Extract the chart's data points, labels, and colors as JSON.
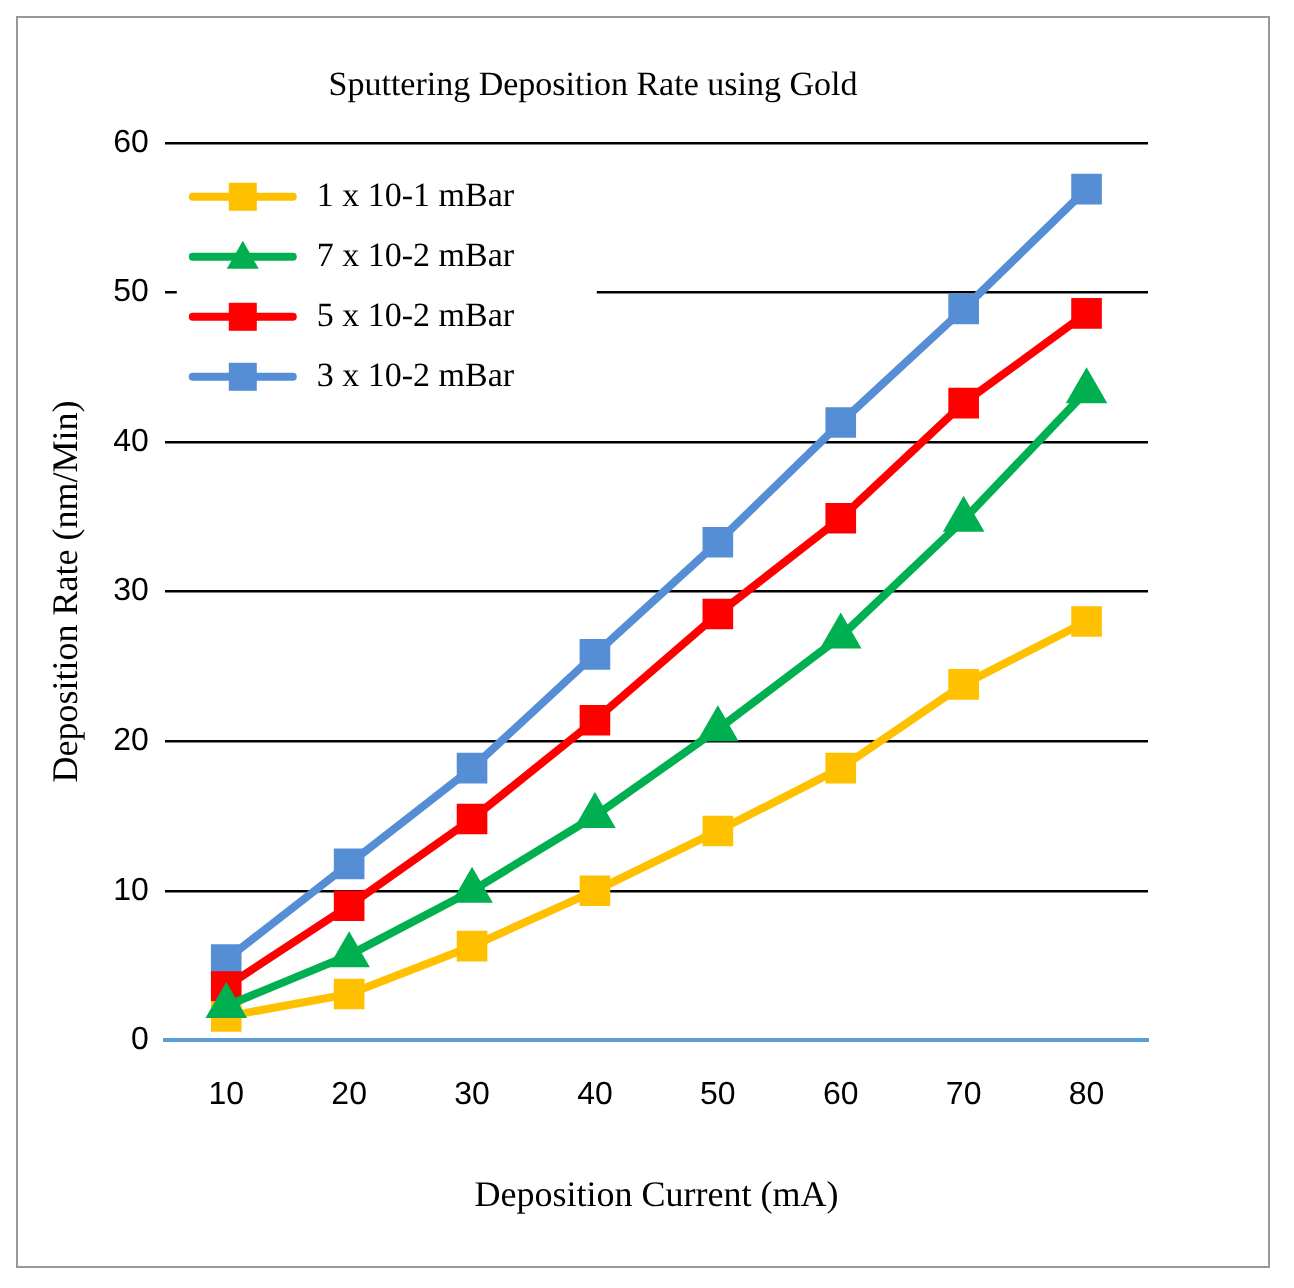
{
  "chart_data": {
    "type": "line",
    "title": "Sputtering Deposition Rate using Gold",
    "xlabel": "Deposition Current (mA)",
    "ylabel": "Deposition Rate (nm/Min)",
    "categories": [
      "10",
      "20",
      "30",
      "40",
      "50",
      "60",
      "70",
      "80"
    ],
    "series": [
      {
        "name": "1 x 10-1 mBar",
        "color": "#ffc000",
        "marker": "square",
        "values": [
          1.6,
          3.1,
          6.3,
          10,
          14,
          18.2,
          23.8,
          28
        ]
      },
      {
        "name": "7 x 10-2 mBar",
        "color": "#00b050",
        "marker": "triangle",
        "values": [
          2.3,
          5.7,
          10,
          15,
          20.8,
          27,
          34.8,
          43.4
        ]
      },
      {
        "name": "5 x 10-2 mBar",
        "color": "#ff0000",
        "marker": "square",
        "values": [
          3.6,
          9,
          14.8,
          21.4,
          28.5,
          34.9,
          42.6,
          48.6
        ]
      },
      {
        "name": "3 x 10-2 mBar",
        "color": "#558ed5",
        "marker": "square",
        "values": [
          5.4,
          11.8,
          18.2,
          25.8,
          33.3,
          41.3,
          48.9,
          56.9
        ]
      }
    ],
    "ylim": [
      0,
      60
    ],
    "yticks": [
      0,
      10,
      20,
      30,
      40,
      50,
      60
    ],
    "grid": "y",
    "legend": "top left"
  }
}
